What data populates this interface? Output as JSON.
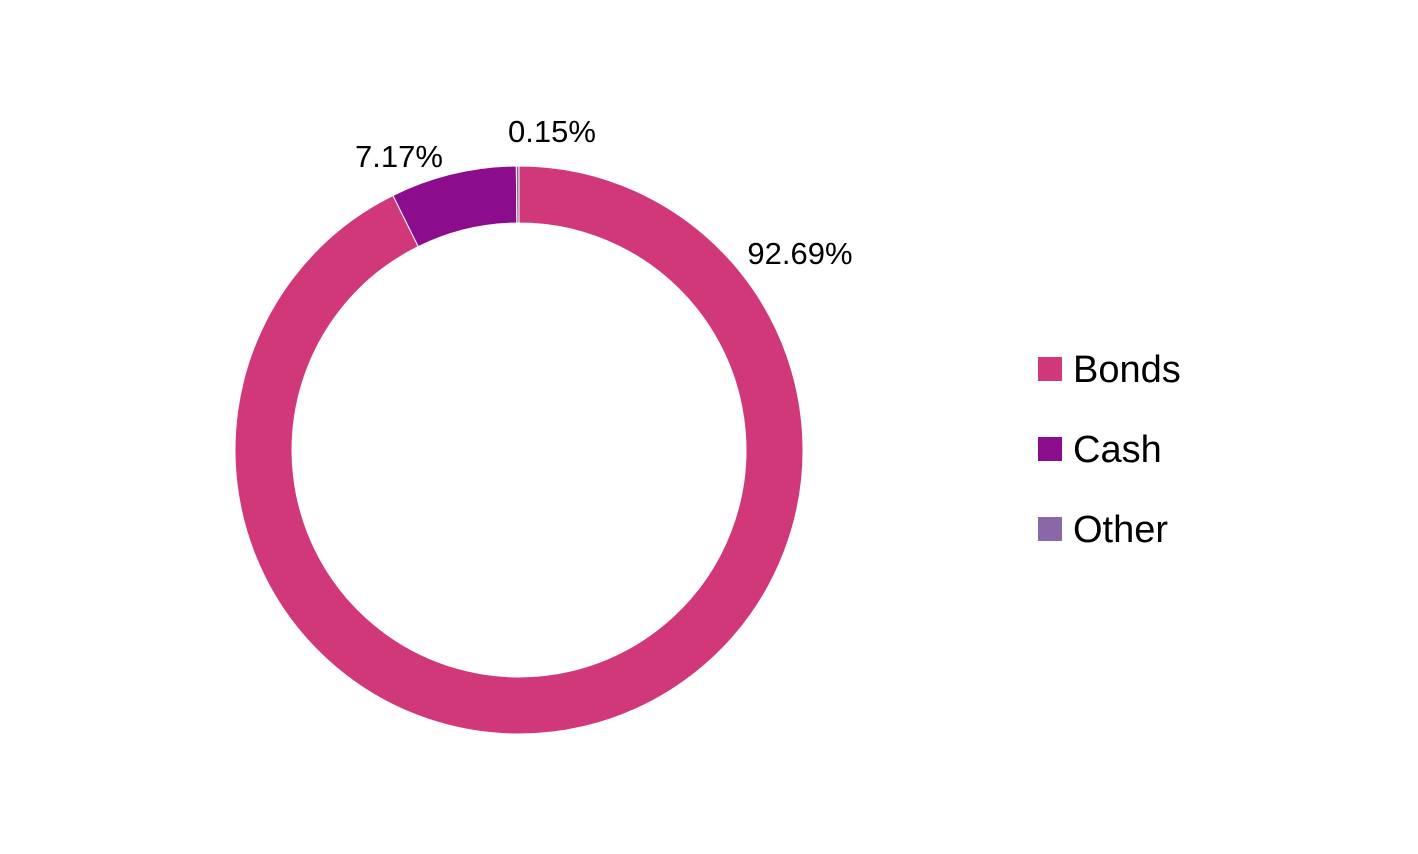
{
  "chart_data": {
    "type": "pie",
    "donut": true,
    "categories": [
      "Bonds",
      "Cash",
      "Other"
    ],
    "values": [
      92.69,
      7.17,
      0.15
    ],
    "labels": [
      "92.69%",
      "7.17%",
      "0.15%"
    ],
    "colors": [
      "#d1387a",
      "#8b0d8b",
      "#8a68a8"
    ],
    "legend": {
      "position": "right",
      "entries": [
        "Bonds",
        "Cash",
        "Other"
      ]
    }
  }
}
